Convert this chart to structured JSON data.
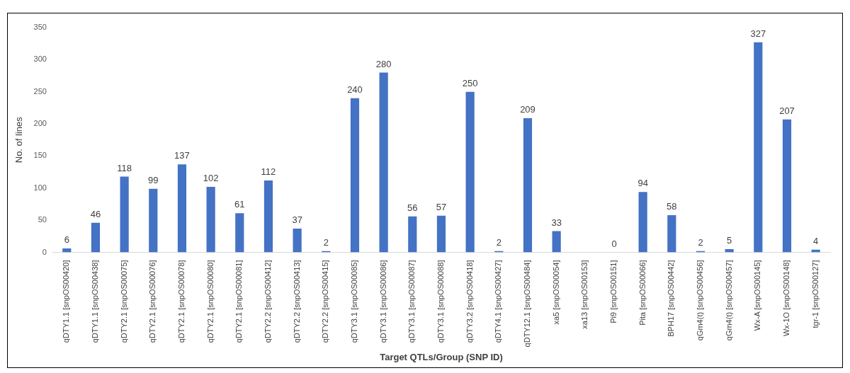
{
  "chart_data": {
    "type": "bar",
    "categories": [
      "qDTY1.1 [snpOS00420]",
      "qDTY1.1 [snpOS00438]",
      "qDTY2.1 [snpOS00075]",
      "qDTY2.1 [snpOS00076]",
      "qDTY2.1 [snpOS00078]",
      "qDTY2.1 [snpOS00080]",
      "qDTY2.1 [snpOS00081]",
      "qDTY2.2 [snpOS00412]",
      "qDTY2.2 [snpOS00413]",
      "qDTY2.2 [snpOS00415]",
      "qDTY3.1 [snpOS00085]",
      "qDTY3.1 [snpOS00086]",
      "qDTY3.1 [snpOS00087]",
      "qDTY3.1 [snpOS00088]",
      "qDTY3.2 [snpOS00418]",
      "qDTY4.1 [snpOS00427]",
      "qDTY12.1 [snpOS00484]",
      "xa5 [snpOS00054]",
      "xa13 [snpOS00153]",
      "Pi9 [snpOS00151]",
      "Pita [snpOS00066]",
      "BPH17 [snpOS00442]",
      "qGm4(t) [snpOS00456]",
      "qGm4(t) [snpOS00457]",
      "Wx-A [snpOS00145]",
      "Wx-1O [snpOS00148]",
      "tgr-1 [snpOS00127]"
    ],
    "values": [
      6,
      46,
      118,
      99,
      137,
      102,
      61,
      112,
      37,
      2,
      240,
      280,
      56,
      57,
      250,
      2,
      209,
      33,
      null,
      0,
      94,
      58,
      2,
      5,
      327,
      207,
      4
    ],
    "color": "#4472c4",
    "ylim": [
      0,
      350
    ],
    "yticks": [
      0,
      50,
      100,
      150,
      200,
      250,
      300,
      350
    ],
    "ylabel": "No. of lines",
    "xlabel": "Target QTLs/Group (SNP ID)",
    "data_labels": true,
    "grid": false,
    "legend": false
  }
}
